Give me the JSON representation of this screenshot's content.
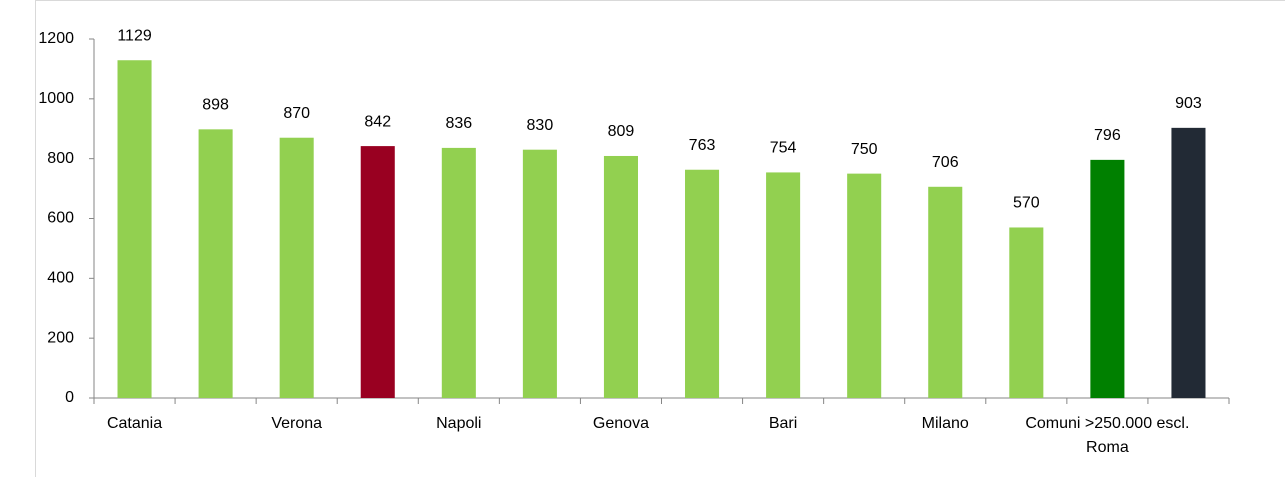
{
  "chart_data": {
    "type": "bar",
    "categories": [
      "Catania",
      null,
      "Verona",
      null,
      "Napoli",
      null,
      "Genova",
      null,
      "Bari",
      null,
      "Milano",
      null,
      "Comuni >250.000 escl. Roma",
      null
    ],
    "values": [
      1129,
      898,
      870,
      842,
      836,
      830,
      809,
      763,
      754,
      750,
      706,
      570,
      796,
      903
    ],
    "colors": [
      "#92d050",
      "#92d050",
      "#92d050",
      "#990021",
      "#92d050",
      "#92d050",
      "#92d050",
      "#92d050",
      "#92d050",
      "#92d050",
      "#92d050",
      "#92d050",
      "#008000",
      "#222a35"
    ],
    "ylim": [
      0,
      1200
    ],
    "yticks": [
      0,
      200,
      400,
      600,
      800,
      1000,
      1200
    ],
    "grid": false
  }
}
